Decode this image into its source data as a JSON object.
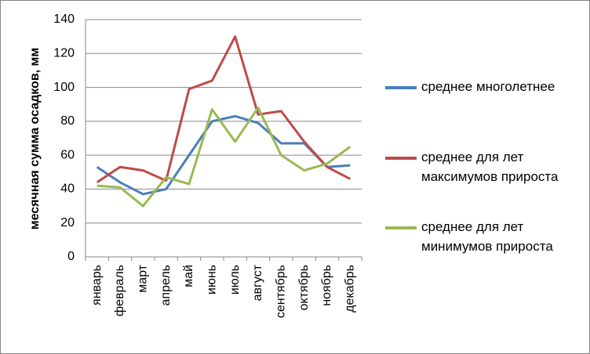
{
  "chart_data": {
    "type": "line",
    "y_label": "месячная сумма осадков, мм",
    "categories": [
      "январь",
      "февраль",
      "март",
      "апрель",
      "май",
      "июнь",
      "июль",
      "август",
      "сентябрь",
      "октябрь",
      "ноябрь",
      "декабрь"
    ],
    "series": [
      {
        "name": "среднее многолетнее",
        "color": "#4a7ebb",
        "values": [
          53,
          44,
          37,
          40,
          60,
          80,
          83,
          79,
          67,
          67,
          53,
          54
        ]
      },
      {
        "name": "среднее для лет максимумов прироста",
        "color": "#be4b48",
        "values": [
          44,
          53,
          51,
          45,
          99,
          104,
          130,
          84,
          86,
          68,
          53,
          46
        ]
      },
      {
        "name": "среднее для лет минимумов прироста",
        "color": "#98b954",
        "values": [
          42,
          41,
          30,
          47,
          43,
          87,
          68,
          88,
          60,
          51,
          55,
          65
        ]
      }
    ],
    "ylim": [
      0,
      140
    ],
    "yticks": [
      0,
      20,
      40,
      60,
      80,
      100,
      120,
      140
    ],
    "grid": true,
    "legend": "right"
  }
}
